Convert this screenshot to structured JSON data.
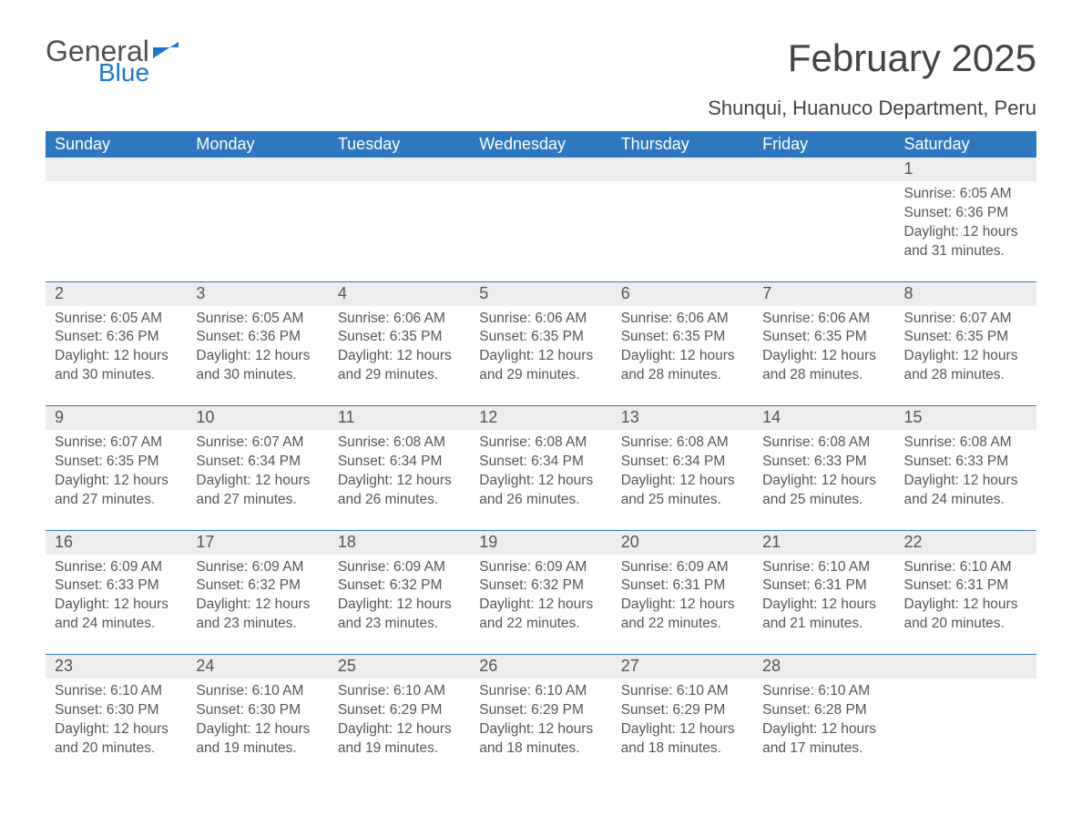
{
  "logo": {
    "text_general": "General",
    "text_blue": "Blue",
    "icon_color": "#1e78c8"
  },
  "title": "February 2025",
  "location": "Shunqui, Huanuco Department, Peru",
  "colors": {
    "header_bg": "#2f78bf",
    "header_text": "#ffffff",
    "daynum_bg": "#ededed",
    "body_text": "#555555",
    "rule": "#2f78bf"
  },
  "day_labels": [
    "Sunday",
    "Monday",
    "Tuesday",
    "Wednesday",
    "Thursday",
    "Friday",
    "Saturday"
  ],
  "weeks": [
    [
      {
        "num": "",
        "sunrise": "",
        "sunset": "",
        "daylight": ""
      },
      {
        "num": "",
        "sunrise": "",
        "sunset": "",
        "daylight": ""
      },
      {
        "num": "",
        "sunrise": "",
        "sunset": "",
        "daylight": ""
      },
      {
        "num": "",
        "sunrise": "",
        "sunset": "",
        "daylight": ""
      },
      {
        "num": "",
        "sunrise": "",
        "sunset": "",
        "daylight": ""
      },
      {
        "num": "",
        "sunrise": "",
        "sunset": "",
        "daylight": ""
      },
      {
        "num": "1",
        "sunrise": "Sunrise: 6:05 AM",
        "sunset": "Sunset: 6:36 PM",
        "daylight": "Daylight: 12 hours and 31 minutes."
      }
    ],
    [
      {
        "num": "2",
        "sunrise": "Sunrise: 6:05 AM",
        "sunset": "Sunset: 6:36 PM",
        "daylight": "Daylight: 12 hours and 30 minutes."
      },
      {
        "num": "3",
        "sunrise": "Sunrise: 6:05 AM",
        "sunset": "Sunset: 6:36 PM",
        "daylight": "Daylight: 12 hours and 30 minutes."
      },
      {
        "num": "4",
        "sunrise": "Sunrise: 6:06 AM",
        "sunset": "Sunset: 6:35 PM",
        "daylight": "Daylight: 12 hours and 29 minutes."
      },
      {
        "num": "5",
        "sunrise": "Sunrise: 6:06 AM",
        "sunset": "Sunset: 6:35 PM",
        "daylight": "Daylight: 12 hours and 29 minutes."
      },
      {
        "num": "6",
        "sunrise": "Sunrise: 6:06 AM",
        "sunset": "Sunset: 6:35 PM",
        "daylight": "Daylight: 12 hours and 28 minutes."
      },
      {
        "num": "7",
        "sunrise": "Sunrise: 6:06 AM",
        "sunset": "Sunset: 6:35 PM",
        "daylight": "Daylight: 12 hours and 28 minutes."
      },
      {
        "num": "8",
        "sunrise": "Sunrise: 6:07 AM",
        "sunset": "Sunset: 6:35 PM",
        "daylight": "Daylight: 12 hours and 28 minutes."
      }
    ],
    [
      {
        "num": "9",
        "sunrise": "Sunrise: 6:07 AM",
        "sunset": "Sunset: 6:35 PM",
        "daylight": "Daylight: 12 hours and 27 minutes."
      },
      {
        "num": "10",
        "sunrise": "Sunrise: 6:07 AM",
        "sunset": "Sunset: 6:34 PM",
        "daylight": "Daylight: 12 hours and 27 minutes."
      },
      {
        "num": "11",
        "sunrise": "Sunrise: 6:08 AM",
        "sunset": "Sunset: 6:34 PM",
        "daylight": "Daylight: 12 hours and 26 minutes."
      },
      {
        "num": "12",
        "sunrise": "Sunrise: 6:08 AM",
        "sunset": "Sunset: 6:34 PM",
        "daylight": "Daylight: 12 hours and 26 minutes."
      },
      {
        "num": "13",
        "sunrise": "Sunrise: 6:08 AM",
        "sunset": "Sunset: 6:34 PM",
        "daylight": "Daylight: 12 hours and 25 minutes."
      },
      {
        "num": "14",
        "sunrise": "Sunrise: 6:08 AM",
        "sunset": "Sunset: 6:33 PM",
        "daylight": "Daylight: 12 hours and 25 minutes."
      },
      {
        "num": "15",
        "sunrise": "Sunrise: 6:08 AM",
        "sunset": "Sunset: 6:33 PM",
        "daylight": "Daylight: 12 hours and 24 minutes."
      }
    ],
    [
      {
        "num": "16",
        "sunrise": "Sunrise: 6:09 AM",
        "sunset": "Sunset: 6:33 PM",
        "daylight": "Daylight: 12 hours and 24 minutes."
      },
      {
        "num": "17",
        "sunrise": "Sunrise: 6:09 AM",
        "sunset": "Sunset: 6:32 PM",
        "daylight": "Daylight: 12 hours and 23 minutes."
      },
      {
        "num": "18",
        "sunrise": "Sunrise: 6:09 AM",
        "sunset": "Sunset: 6:32 PM",
        "daylight": "Daylight: 12 hours and 23 minutes."
      },
      {
        "num": "19",
        "sunrise": "Sunrise: 6:09 AM",
        "sunset": "Sunset: 6:32 PM",
        "daylight": "Daylight: 12 hours and 22 minutes."
      },
      {
        "num": "20",
        "sunrise": "Sunrise: 6:09 AM",
        "sunset": "Sunset: 6:31 PM",
        "daylight": "Daylight: 12 hours and 22 minutes."
      },
      {
        "num": "21",
        "sunrise": "Sunrise: 6:10 AM",
        "sunset": "Sunset: 6:31 PM",
        "daylight": "Daylight: 12 hours and 21 minutes."
      },
      {
        "num": "22",
        "sunrise": "Sunrise: 6:10 AM",
        "sunset": "Sunset: 6:31 PM",
        "daylight": "Daylight: 12 hours and 20 minutes."
      }
    ],
    [
      {
        "num": "23",
        "sunrise": "Sunrise: 6:10 AM",
        "sunset": "Sunset: 6:30 PM",
        "daylight": "Daylight: 12 hours and 20 minutes."
      },
      {
        "num": "24",
        "sunrise": "Sunrise: 6:10 AM",
        "sunset": "Sunset: 6:30 PM",
        "daylight": "Daylight: 12 hours and 19 minutes."
      },
      {
        "num": "25",
        "sunrise": "Sunrise: 6:10 AM",
        "sunset": "Sunset: 6:29 PM",
        "daylight": "Daylight: 12 hours and 19 minutes."
      },
      {
        "num": "26",
        "sunrise": "Sunrise: 6:10 AM",
        "sunset": "Sunset: 6:29 PM",
        "daylight": "Daylight: 12 hours and 18 minutes."
      },
      {
        "num": "27",
        "sunrise": "Sunrise: 6:10 AM",
        "sunset": "Sunset: 6:29 PM",
        "daylight": "Daylight: 12 hours and 18 minutes."
      },
      {
        "num": "28",
        "sunrise": "Sunrise: 6:10 AM",
        "sunset": "Sunset: 6:28 PM",
        "daylight": "Daylight: 12 hours and 17 minutes."
      },
      {
        "num": "",
        "sunrise": "",
        "sunset": "",
        "daylight": ""
      }
    ]
  ]
}
